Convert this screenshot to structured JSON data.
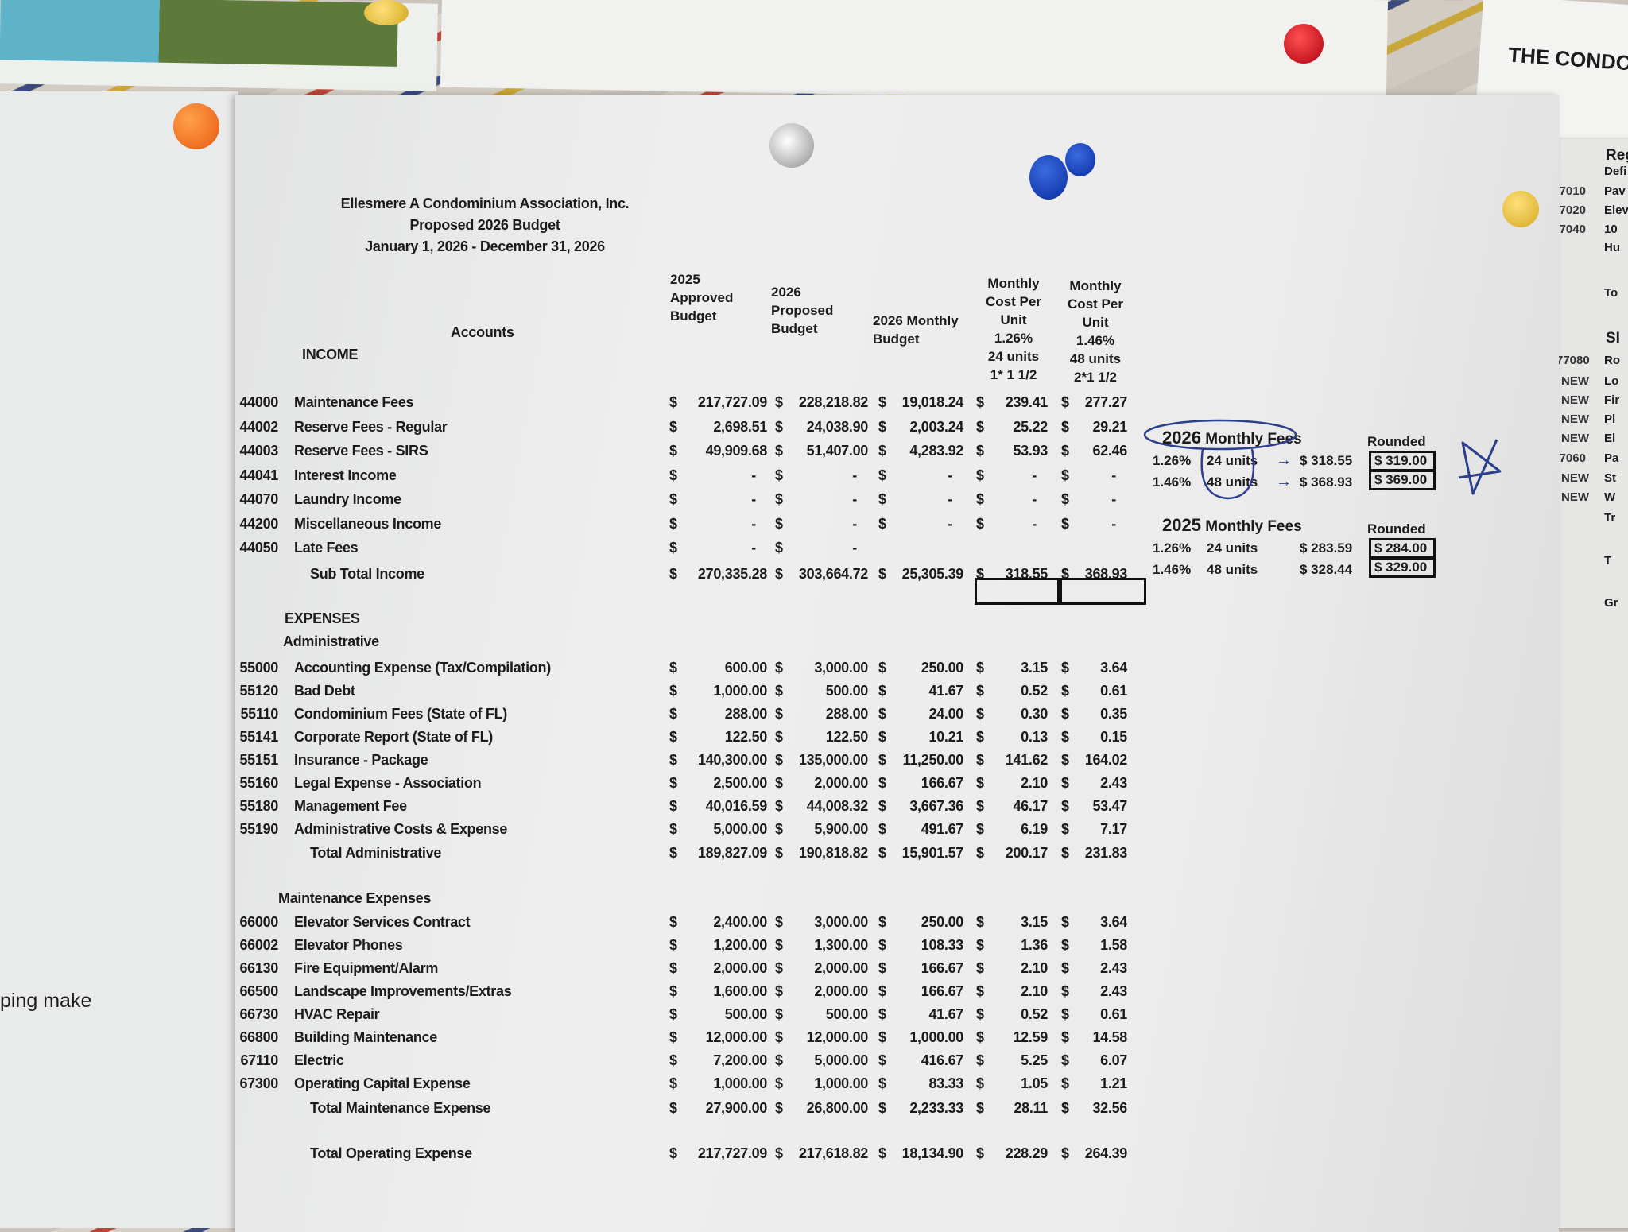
{
  "background_notes": {
    "top_right_note": "THE CONDO",
    "left_sheet_text": "ping make"
  },
  "document": {
    "title_lines": [
      "Ellesmere A Condominium Association, Inc.",
      "Proposed 2026 Budget",
      "January 1, 2026 - December 31, 2026"
    ],
    "accounts_header": "Accounts",
    "columns": [
      [
        "2025",
        "Approved",
        "Budget"
      ],
      [
        "2026",
        "Proposed",
        "Budget"
      ],
      [
        "2026 Monthly",
        "Budget"
      ],
      [
        "Monthly",
        "Cost Per",
        "Unit",
        "1.26%",
        "24 units",
        "1* 1 1/2"
      ],
      [
        "Monthly",
        "Cost Per",
        "Unit",
        "1.46%",
        "48 units",
        "2*1 1/2"
      ]
    ],
    "income": {
      "heading": "INCOME",
      "rows": [
        {
          "code": "44000",
          "name": "Maintenance Fees",
          "values": [
            "217,727.09",
            "228,218.82",
            "19,018.24",
            "239.41",
            "277.27"
          ]
        },
        {
          "code": "44002",
          "name": "Reserve Fees - Regular",
          "values": [
            "2,698.51",
            "24,038.90",
            "2,003.24",
            "25.22",
            "29.21"
          ]
        },
        {
          "code": "44003",
          "name": "Reserve Fees - SIRS",
          "values": [
            "49,909.68",
            "51,407.00",
            "4,283.92",
            "53.93",
            "62.46"
          ]
        },
        {
          "code": "44041",
          "name": "Interest Income",
          "values": [
            "-",
            "-",
            "-",
            "-",
            "-"
          ]
        },
        {
          "code": "44070",
          "name": "Laundry Income",
          "values": [
            "-",
            "-",
            "-",
            "-",
            "-"
          ]
        },
        {
          "code": "44200",
          "name": "Miscellaneous Income",
          "values": [
            "-",
            "-",
            "-",
            "-",
            "-"
          ]
        },
        {
          "code": "44050",
          "name": "Late Fees",
          "values": [
            "-",
            "-",
            null,
            null,
            null
          ]
        }
      ],
      "subtotal": {
        "name": "Sub Total Income",
        "values": [
          "270,335.28",
          "303,664.72",
          "25,305.39",
          "318.55",
          "368.93"
        ]
      }
    },
    "expenses_heading": "EXPENSES",
    "administrative": {
      "heading": "Administrative",
      "rows": [
        {
          "code": "55000",
          "name": "Accounting Expense (Tax/Compilation)",
          "values": [
            "600.00",
            "3,000.00",
            "250.00",
            "3.15",
            "3.64"
          ]
        },
        {
          "code": "55120",
          "name": "Bad Debt",
          "values": [
            "1,000.00",
            "500.00",
            "41.67",
            "0.52",
            "0.61"
          ]
        },
        {
          "code": "55110",
          "name": "Condominium Fees (State of FL)",
          "values": [
            "288.00",
            "288.00",
            "24.00",
            "0.30",
            "0.35"
          ]
        },
        {
          "code": "55141",
          "name": "Corporate Report (State of FL)",
          "values": [
            "122.50",
            "122.50",
            "10.21",
            "0.13",
            "0.15"
          ]
        },
        {
          "code": "55151",
          "name": "Insurance - Package",
          "values": [
            "140,300.00",
            "135,000.00",
            "11,250.00",
            "141.62",
            "164.02"
          ]
        },
        {
          "code": "55160",
          "name": "Legal Expense - Association",
          "values": [
            "2,500.00",
            "2,000.00",
            "166.67",
            "2.10",
            "2.43"
          ]
        },
        {
          "code": "55180",
          "name": "Management Fee",
          "values": [
            "40,016.59",
            "44,008.32",
            "3,667.36",
            "46.17",
            "53.47"
          ]
        },
        {
          "code": "55190",
          "name": "Administrative Costs & Expense",
          "values": [
            "5,000.00",
            "5,900.00",
            "491.67",
            "6.19",
            "7.17"
          ]
        }
      ],
      "total": {
        "name": "Total Administrative",
        "values": [
          "189,827.09",
          "190,818.82",
          "15,901.57",
          "200.17",
          "231.83"
        ]
      }
    },
    "maintenance": {
      "heading": "Maintenance Expenses",
      "rows": [
        {
          "code": "66000",
          "name": "Elevator Services Contract",
          "values": [
            "2,400.00",
            "3,000.00",
            "250.00",
            "3.15",
            "3.64"
          ]
        },
        {
          "code": "66002",
          "name": "Elevator Phones",
          "values": [
            "1,200.00",
            "1,300.00",
            "108.33",
            "1.36",
            "1.58"
          ]
        },
        {
          "code": "66130",
          "name": "Fire Equipment/Alarm",
          "values": [
            "2,000.00",
            "2,000.00",
            "166.67",
            "2.10",
            "2.43"
          ]
        },
        {
          "code": "66500",
          "name": "Landscape Improvements/Extras",
          "values": [
            "1,600.00",
            "2,000.00",
            "166.67",
            "2.10",
            "2.43"
          ]
        },
        {
          "code": "66730",
          "name": "HVAC Repair",
          "values": [
            "500.00",
            "500.00",
            "41.67",
            "0.52",
            "0.61"
          ]
        },
        {
          "code": "66800",
          "name": "Building Maintenance",
          "values": [
            "12,000.00",
            "12,000.00",
            "1,000.00",
            "12.59",
            "14.58"
          ]
        },
        {
          "code": "67110",
          "name": "Electric",
          "values": [
            "7,200.00",
            "5,000.00",
            "416.67",
            "5.25",
            "6.07"
          ]
        },
        {
          "code": "67300",
          "name": "Operating Capital Expense",
          "values": [
            "1,000.00",
            "1,000.00",
            "83.33",
            "1.05",
            "1.21"
          ]
        }
      ],
      "total": {
        "name": "Total Maintenance Expense",
        "values": [
          "27,900.00",
          "26,800.00",
          "2,233.33",
          "28.11",
          "32.56"
        ]
      }
    },
    "total_operating": {
      "name": "Total Operating Expense",
      "values": [
        "217,727.09",
        "217,618.82",
        "18,134.90",
        "228.29",
        "264.39"
      ]
    },
    "currency_symbol": "$"
  },
  "fees_summary": {
    "fees_2026": {
      "title_year": "2026",
      "title_rest": "Monthly Fees",
      "rounded_label": "Rounded",
      "rows": [
        {
          "pct": "1.26%",
          "units": "24 units",
          "amount": "$ 318.55",
          "rounded": "$ 319.00"
        },
        {
          "pct": "1.46%",
          "units": "48 units",
          "amount": "$ 368.93",
          "rounded": "$ 369.00"
        }
      ]
    },
    "fees_2025": {
      "title_year": "2025",
      "title_rest": "Monthly Fees",
      "rounded_label": "Rounded",
      "rows": [
        {
          "pct": "1.26%",
          "units": "24 units",
          "amount": "$ 283.59",
          "rounded": "$ 284.00"
        },
        {
          "pct": "1.46%",
          "units": "48 units",
          "amount": "$ 328.44",
          "rounded": "$ 329.00"
        }
      ]
    },
    "ink_color": "#2c3f8c"
  },
  "right_sheet": {
    "lines": [
      {
        "code": "",
        "text": "Reg"
      },
      {
        "code": "",
        "text": "Defi"
      },
      {
        "code": "'7010",
        "text": "Pav"
      },
      {
        "code": "'7020",
        "text": "Elev"
      },
      {
        "code": "'7040",
        "text": "10"
      },
      {
        "code": "",
        "text": "Hu"
      },
      {
        "code": "",
        "text": "To"
      },
      {
        "code": "",
        "text": "SI"
      },
      {
        "code": "77080",
        "text": "Ro"
      },
      {
        "code": "NEW",
        "text": "Lo"
      },
      {
        "code": "NEW",
        "text": "Fir"
      },
      {
        "code": "NEW",
        "text": "Pl"
      },
      {
        "code": "NEW",
        "text": "El"
      },
      {
        "code": "'7060",
        "text": "Pa"
      },
      {
        "code": "NEW",
        "text": "St"
      },
      {
        "code": "NEW",
        "text": "W"
      },
      {
        "code": "",
        "text": "Tr"
      },
      {
        "code": "",
        "text": "T"
      },
      {
        "code": "",
        "text": "Gr"
      }
    ]
  }
}
